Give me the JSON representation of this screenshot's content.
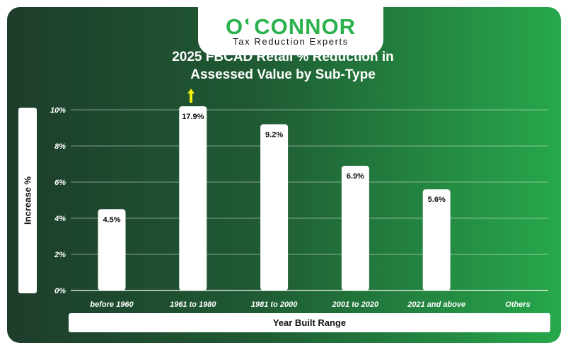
{
  "brand": {
    "name_left": "O",
    "name_right": "CONNOR",
    "tagline": "Tax Reduction Experts"
  },
  "chart_data": {
    "type": "bar",
    "title_line1": "2025 FBCAD Retail % Reduction in",
    "title_line2": "Assessed Value by Sub-Type",
    "xlabel": "Year Built Range",
    "ylabel": "Increase %",
    "categories": [
      "before 1960",
      "1961 to 1980",
      "1981 to 2000",
      "2001 to 2020",
      "2021 and above",
      "Others"
    ],
    "values": [
      4.5,
      17.9,
      9.2,
      6.9,
      5.6,
      null
    ],
    "data_labels": [
      "4.5%",
      "17.9%",
      "9.2%",
      "6.9%",
      "5.6%",
      ""
    ],
    "y_ticks": [
      "0%",
      "2%",
      "4%",
      "6%",
      "8%",
      "10%"
    ],
    "ylim": [
      0,
      10
    ],
    "grid": true,
    "bar_color": "#ffffff",
    "truncated_bar_indicator_color": "#f5f10a"
  }
}
